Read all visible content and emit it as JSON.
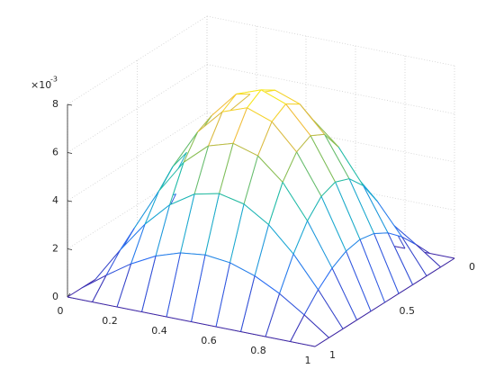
{
  "chart_data": {
    "type": "mesh",
    "x": [
      0,
      0.1,
      0.2,
      0.3,
      0.4,
      0.5,
      0.6,
      0.7,
      0.8,
      0.9,
      1
    ],
    "y": [
      0,
      0.1,
      0.2,
      0.3,
      0.4,
      0.5,
      0.6,
      0.7,
      0.8,
      0.9,
      1
    ],
    "z": [
      [
        0,
        0,
        0,
        0,
        0,
        0,
        0,
        0,
        0,
        0,
        0
      ],
      [
        0,
        0.74,
        1.42,
        1.95,
        2.29,
        2.41,
        2.29,
        1.95,
        1.42,
        0.74,
        0
      ],
      [
        0,
        1.42,
        2.7,
        3.71,
        4.36,
        4.59,
        4.36,
        3.71,
        2.7,
        1.42,
        0
      ],
      [
        0,
        1.95,
        3.71,
        5.11,
        6,
        6.31,
        6,
        5.11,
        3.71,
        1.95,
        0
      ],
      [
        0,
        2.29,
        4.36,
        6,
        7.05,
        7.42,
        7.05,
        6,
        4.36,
        2.29,
        0
      ],
      [
        0,
        2.41,
        4.59,
        6.31,
        7.42,
        7.8,
        7.42,
        6.31,
        4.59,
        2.41,
        0
      ],
      [
        0,
        2.29,
        4.36,
        6,
        7.05,
        7.42,
        7.05,
        6,
        4.36,
        2.29,
        0
      ],
      [
        0,
        1.95,
        3.71,
        5.11,
        6,
        6.31,
        6,
        5.11,
        3.71,
        1.95,
        0
      ],
      [
        0,
        1.42,
        2.7,
        3.71,
        4.36,
        4.59,
        4.36,
        3.71,
        2.7,
        1.42,
        0
      ],
      [
        0,
        0.74,
        1.42,
        1.95,
        2.29,
        2.41,
        2.29,
        1.95,
        1.42,
        0.74,
        0
      ],
      [
        0,
        0,
        0,
        0,
        0,
        0,
        0,
        0,
        0,
        0,
        0
      ]
    ],
    "xlim": [
      0,
      1
    ],
    "ylim": [
      0,
      1
    ],
    "zlim": [
      0,
      8
    ],
    "xticks": [
      0,
      0.2,
      0.4,
      0.6,
      0.8,
      1
    ],
    "yticks": [
      0,
      0.5,
      1
    ],
    "zticks": [
      0,
      2,
      4,
      6,
      8
    ],
    "z_exponent_base": "×10",
    "z_exponent": "-3",
    "colormap": "parula",
    "grid": true
  }
}
